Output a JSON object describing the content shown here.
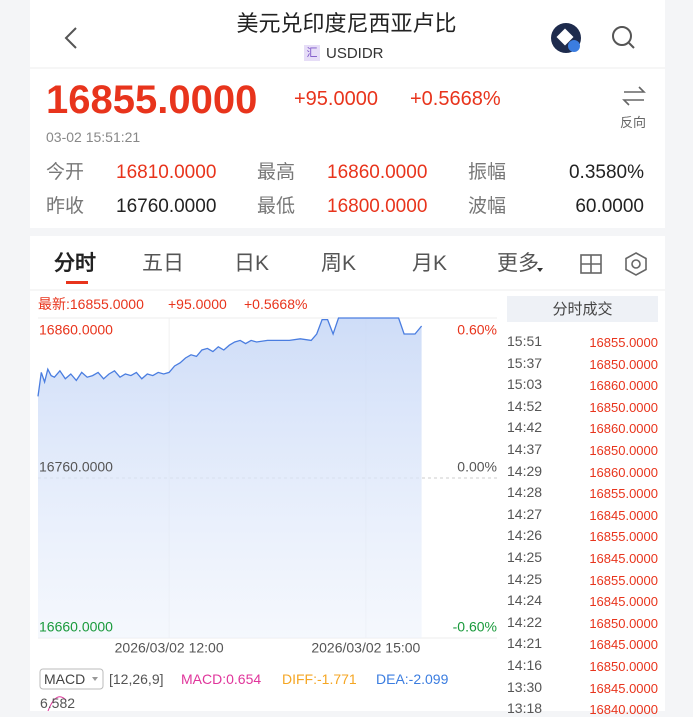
{
  "header": {
    "title": "美元兑印度尼西亚卢比",
    "badge": "汇",
    "symbol": "USDIDR"
  },
  "quote": {
    "price": "16855.0000",
    "change": "+95.0000",
    "change_pct": "+0.5668%",
    "time": "03-02 15:51:21",
    "swap_label": "反向"
  },
  "stats": {
    "rows": [
      [
        "今开",
        "16810.0000",
        "最高",
        "16860.0000",
        "振幅",
        "0.3580%"
      ],
      [
        "昨收",
        "16760.0000",
        "最低",
        "16800.0000",
        "波幅",
        "60.0000"
      ]
    ]
  },
  "tabs": [
    "分时",
    "五日",
    "日K",
    "周K",
    "月K",
    "更多"
  ],
  "chart_data": {
    "type": "line",
    "latest_label": "最新:16855.0000",
    "change": "+95.0000",
    "change_pct": "+0.5668%",
    "xlim": [
      0,
      420
    ],
    "xticks": [
      {
        "value": 120,
        "label": "2026/03/02 12:00"
      },
      {
        "value": 300,
        "label": "2026/03/02 15:00"
      }
    ],
    "ylim": [
      16660,
      16860
    ],
    "yticks": [
      {
        "value": 16660,
        "label": "16660.0000"
      },
      {
        "value": 16760,
        "label": "16760.0000"
      },
      {
        "value": 16860,
        "label": "16860.0000"
      }
    ],
    "y2lim": [
      -0.6,
      0.6
    ],
    "y2ticks": [
      {
        "value": -0.6,
        "label": "-0.60%"
      },
      {
        "value": 0,
        "label": "0.00%"
      },
      {
        "value": 0.6,
        "label": "0.60%"
      }
    ],
    "grid": true,
    "series": [
      {
        "color": "#4a7de0",
        "x": [
          0,
          3,
          6,
          9,
          12,
          15,
          20,
          25,
          30,
          35,
          40,
          45,
          50,
          55,
          60,
          65,
          70,
          75,
          80,
          85,
          90,
          95,
          100,
          105,
          110,
          115,
          120,
          125,
          130,
          135,
          140,
          145,
          150,
          155,
          160,
          165,
          170,
          175,
          180,
          185,
          190,
          195,
          200,
          210,
          220,
          230,
          240,
          250,
          255,
          260,
          265,
          270,
          275,
          280,
          290,
          300,
          310,
          320,
          330,
          335,
          340,
          345,
          351
        ],
        "values": [
          16811,
          16826,
          16820,
          16828,
          16824,
          16823,
          16827,
          16822,
          16825,
          16821,
          16826,
          16823,
          16824,
          16826,
          16822,
          16825,
          16827,
          16823,
          16825,
          16824,
          16826,
          16822,
          16825,
          16824,
          16826,
          16825,
          16826,
          16830,
          16832,
          16835,
          16837,
          16836,
          16840,
          16841,
          16839,
          16842,
          16840,
          16843,
          16845,
          16846,
          16844,
          16846,
          16845,
          16846,
          16846,
          16846,
          16847,
          16846,
          16850,
          16859,
          16859,
          16850,
          16860,
          16860,
          16860,
          16860,
          16860,
          16860,
          16860,
          16850,
          16850,
          16850,
          16855
        ]
      }
    ]
  },
  "trades": {
    "title": "分时成交",
    "rows": [
      [
        "15:51",
        "16855.0000"
      ],
      [
        "15:37",
        "16850.0000"
      ],
      [
        "15:03",
        "16860.0000"
      ],
      [
        "14:52",
        "16850.0000"
      ],
      [
        "14:42",
        "16860.0000"
      ],
      [
        "14:37",
        "16850.0000"
      ],
      [
        "14:29",
        "16860.0000"
      ],
      [
        "14:28",
        "16855.0000"
      ],
      [
        "14:27",
        "16845.0000"
      ],
      [
        "14:26",
        "16855.0000"
      ],
      [
        "14:25",
        "16845.0000"
      ],
      [
        "14:25",
        "16855.0000"
      ],
      [
        "14:24",
        "16845.0000"
      ],
      [
        "14:22",
        "16850.0000"
      ],
      [
        "14:21",
        "16845.0000"
      ],
      [
        "14:16",
        "16850.0000"
      ],
      [
        "13:30",
        "16845.0000"
      ],
      [
        "13:18",
        "16840.0000"
      ]
    ]
  },
  "indicator": {
    "name": "MACD",
    "params": "[12,26,9]",
    "macd": "MACD:0.654",
    "diff": "DIFF:-1.771",
    "dea": "DEA:-2.099",
    "axis_value": "6.582"
  }
}
